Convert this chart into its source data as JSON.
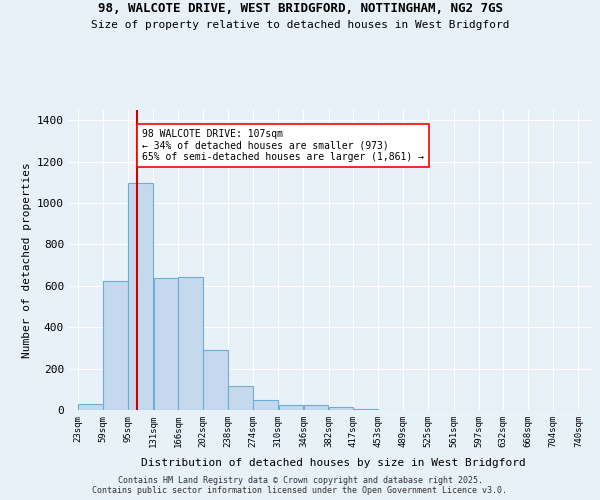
{
  "title_line1": "98, WALCOTE DRIVE, WEST BRIDGFORD, NOTTINGHAM, NG2 7GS",
  "title_line2": "Size of property relative to detached houses in West Bridgford",
  "xlabel": "Distribution of detached houses by size in West Bridgford",
  "ylabel": "Number of detached properties",
  "bar_left_edges": [
    23,
    59,
    95,
    131,
    166,
    202,
    238,
    274,
    310,
    346,
    382,
    417,
    453,
    489,
    525,
    561,
    597,
    632,
    668,
    704
  ],
  "bar_widths": [
    36,
    36,
    36,
    35,
    36,
    36,
    36,
    36,
    36,
    36,
    35,
    36,
    36,
    36,
    36,
    36,
    35,
    36,
    36,
    36
  ],
  "bar_heights": [
    28,
    622,
    1098,
    640,
    642,
    290,
    116,
    50,
    26,
    25,
    14,
    4,
    0,
    0,
    0,
    0,
    0,
    0,
    0,
    0
  ],
  "bar_color": "#c5d9ee",
  "bar_edge_color": "#6baed6",
  "bar_edge_width": 0.8,
  "tick_labels": [
    "23sqm",
    "59sqm",
    "95sqm",
    "131sqm",
    "166sqm",
    "202sqm",
    "238sqm",
    "274sqm",
    "310sqm",
    "346sqm",
    "382sqm",
    "417sqm",
    "453sqm",
    "489sqm",
    "525sqm",
    "561sqm",
    "597sqm",
    "632sqm",
    "668sqm",
    "704sqm",
    "740sqm"
  ],
  "tick_positions": [
    23,
    59,
    95,
    131,
    166,
    202,
    238,
    274,
    310,
    346,
    382,
    417,
    453,
    489,
    525,
    561,
    597,
    632,
    668,
    704,
    740
  ],
  "yticks": [
    0,
    200,
    400,
    600,
    800,
    1000,
    1200,
    1400
  ],
  "ylim": [
    0,
    1450
  ],
  "xlim": [
    10,
    758
  ],
  "red_line_x": 107,
  "red_line_color": "#cc0000",
  "annotation_text": "98 WALCOTE DRIVE: 107sqm\n← 34% of detached houses are smaller (973)\n65% of semi-detached houses are larger (1,861) →",
  "background_color": "#e8f0f8",
  "grid_color": "#d0dce8",
  "footer_line1": "Contains HM Land Registry data © Crown copyright and database right 2025.",
  "footer_line2": "Contains public sector information licensed under the Open Government Licence v3.0."
}
